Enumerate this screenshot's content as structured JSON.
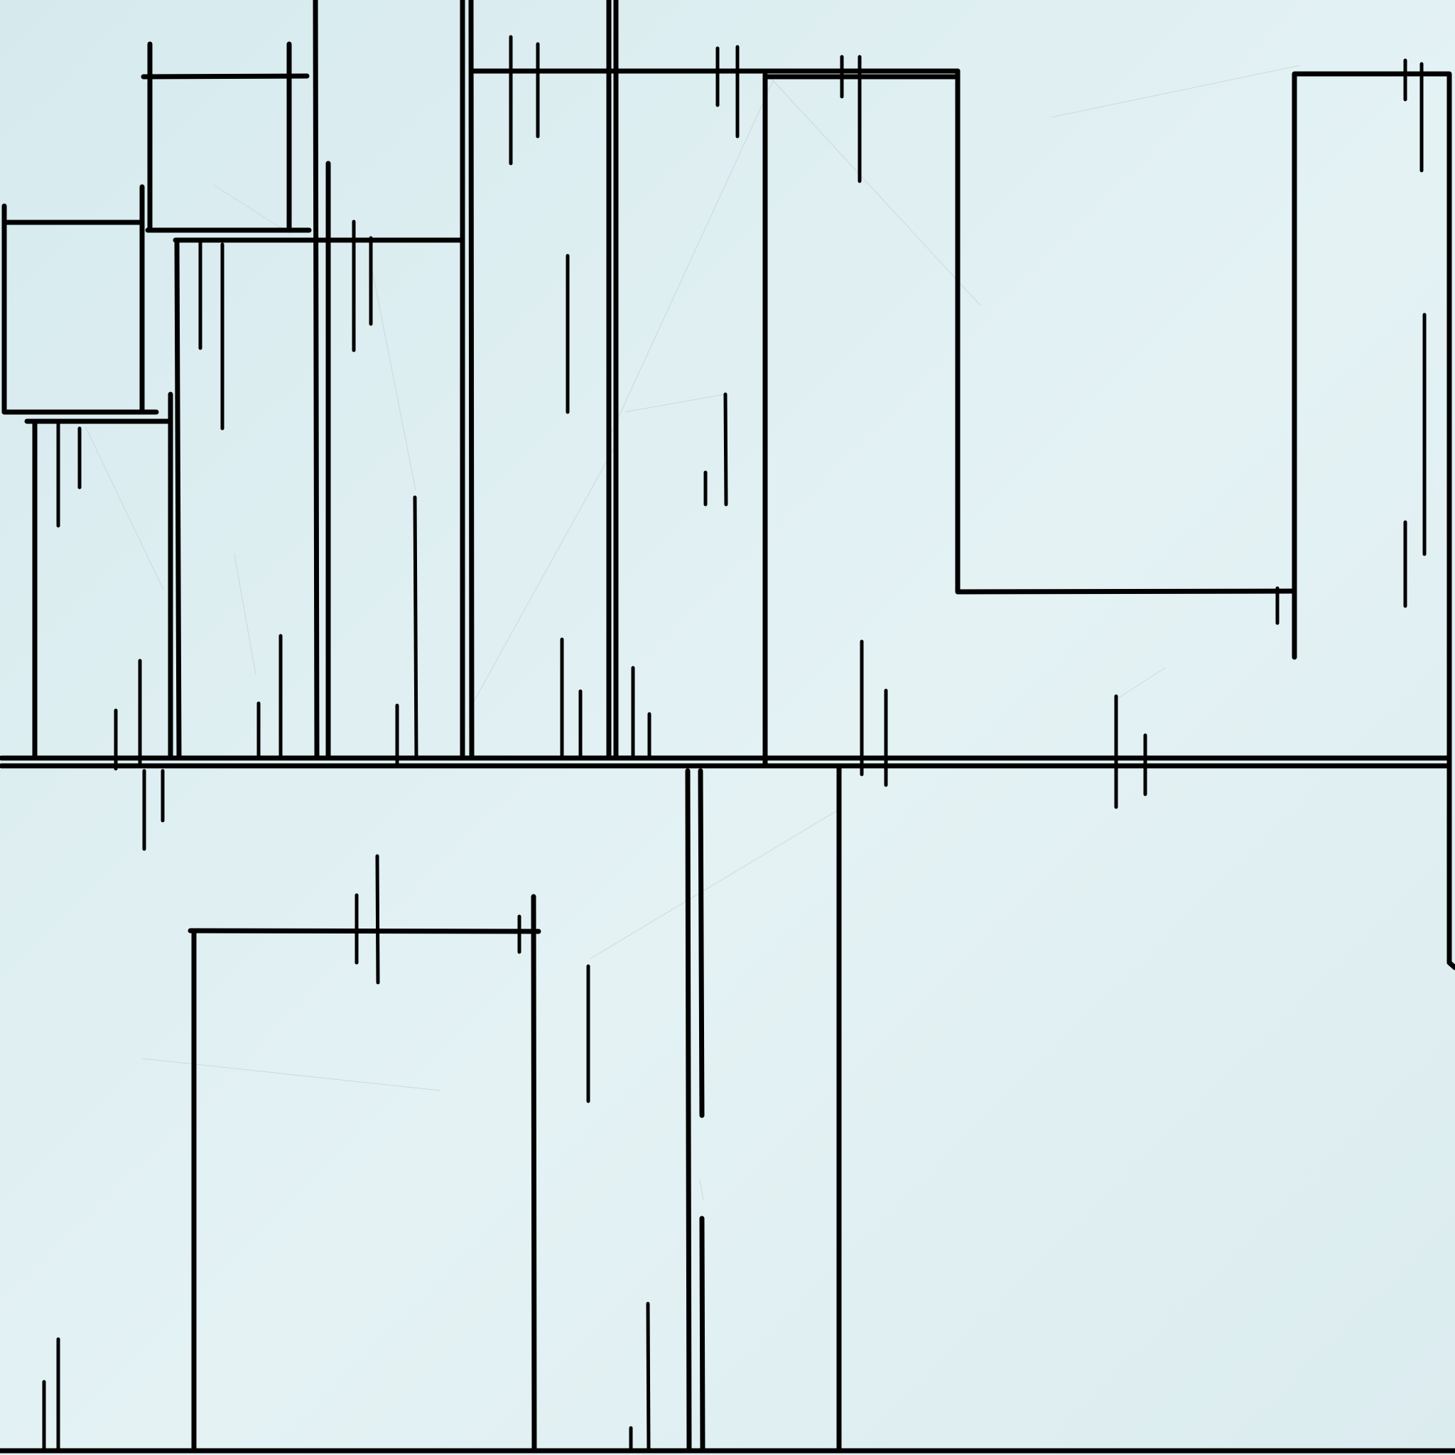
{
  "artwork": {
    "background_color": "#dcedf0",
    "background_gradient_to": "#e6f3f5",
    "line_color": "#000000",
    "ghost_line_color": "#c9dade",
    "description_free": true
  }
}
